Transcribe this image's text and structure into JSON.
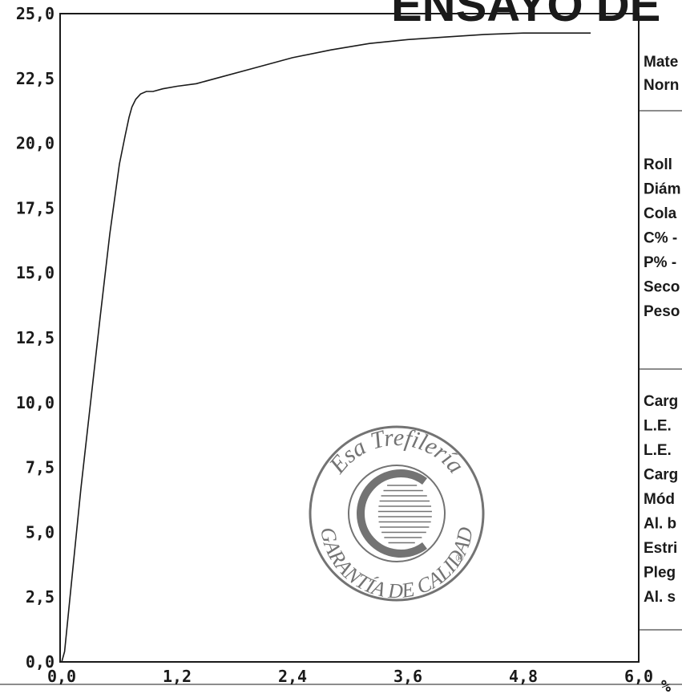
{
  "title_fragment": "ENSAYO DE T",
  "chart_data": {
    "type": "line",
    "title": "",
    "xlabel": "",
    "ylabel": "",
    "x_unit": "%",
    "xlim": [
      0,
      6
    ],
    "ylim": [
      0,
      25
    ],
    "x_ticks": [
      "0,0",
      "1,2",
      "2,4",
      "3,6",
      "4,8",
      "6,0"
    ],
    "y_ticks": [
      "0,0",
      "2,5",
      "5,0",
      "7,5",
      "10,0",
      "12,5",
      "15,0",
      "17,5",
      "20,0",
      "22,5",
      "25,0"
    ],
    "grid": false,
    "series": [
      {
        "color": "#1a1a1a",
        "x": [
          0.0,
          0.03,
          0.1,
          0.2,
          0.3,
          0.4,
          0.5,
          0.6,
          0.66,
          0.7,
          0.73,
          0.77,
          0.82,
          0.88,
          0.95,
          1.05,
          1.2,
          1.4,
          1.6,
          2.0,
          2.4,
          2.8,
          3.2,
          3.6,
          4.0,
          4.4,
          4.8,
          5.2,
          5.5
        ],
        "y": [
          0.0,
          0.4,
          3.0,
          6.7,
          10.0,
          13.3,
          16.5,
          19.2,
          20.3,
          21.0,
          21.4,
          21.7,
          21.9,
          22.0,
          22.0,
          22.1,
          22.2,
          22.3,
          22.5,
          22.9,
          23.3,
          23.6,
          23.85,
          24.0,
          24.1,
          24.2,
          24.25,
          24.25,
          24.25
        ]
      }
    ]
  },
  "side_panel": {
    "section1": [
      "Mate",
      "Norn"
    ],
    "section2": [
      "Roll",
      "Diám",
      "Cola",
      "C% -",
      "P% -",
      "Seco",
      "Peso"
    ],
    "section3": [
      "Carg",
      "L.E.",
      "L.E.",
      "Carg",
      "Mód",
      "Al. b",
      "Estri",
      "Pleg",
      "Al. s"
    ]
  },
  "stamp": {
    "top_text": "Esa Trefilería",
    "bottom_text": "GARANTÍA DE CALIDAD",
    "mark": "®",
    "color": "#5b5b5b"
  }
}
